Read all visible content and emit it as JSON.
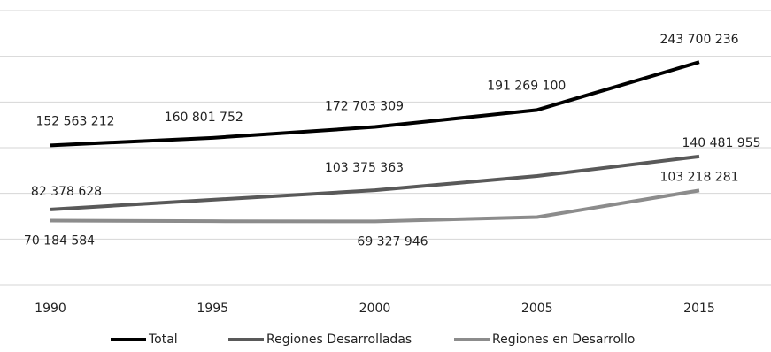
{
  "chart_data": {
    "type": "line",
    "categories": [
      "1990",
      "1995",
      "2000",
      "2005",
      "2015"
    ],
    "ylim": [
      0,
      300000000
    ],
    "yticks": [
      0,
      50000000,
      100000000,
      150000000,
      200000000,
      250000000,
      300000000
    ],
    "grid": true,
    "legend": "bottom",
    "series": [
      {
        "name": "Total",
        "color": "#000000",
        "values": [
          152563212,
          160801752,
          172703309,
          191269100,
          243700236
        ],
        "value_labels": [
          "152 563 212",
          "160 801 752",
          "172 703 309",
          "191 269 100",
          "243 700 236"
        ]
      },
      {
        "name": "Regiones Desarrolladas",
        "color": "#595959",
        "values": [
          82378628,
          93000000,
          103375363,
          119000000,
          140481955
        ],
        "value_labels": [
          "82 378 628",
          null,
          "103 375 363",
          null,
          "140 481 955"
        ]
      },
      {
        "name": "Regiones en Desarrollo",
        "color": "#8c8c8c",
        "values": [
          70184584,
          69500000,
          69327946,
          74000000,
          103218281
        ],
        "value_labels": [
          "70 184 584",
          null,
          "69 327 946",
          null,
          "103 218 281"
        ]
      }
    ]
  }
}
